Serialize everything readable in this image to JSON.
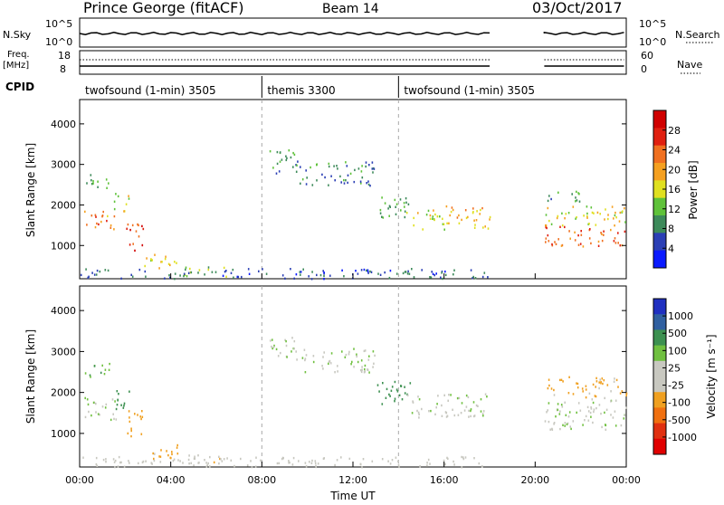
{
  "header": {
    "site": "Prince George (fitACF)",
    "beam": "Beam 14",
    "date": "03/Oct/2017"
  },
  "left_labels": {
    "nsky": "N.Sky",
    "freq": "Freq.",
    "freq_unit": "[MHz]",
    "cpid": "CPID"
  },
  "right_labels": {
    "nsearch": "N.Search",
    "nave": "Nave"
  },
  "noise_axis": {
    "top": "10^5",
    "bottom": "10^0"
  },
  "freq_axis": {
    "top": "18",
    "bottom": "8"
  },
  "nave_axis": {
    "top": "60",
    "bottom": "0"
  },
  "cpid_segments": [
    {
      "label": "twofsound (1-min) 3505",
      "start_h": 0,
      "end_h": 8
    },
    {
      "label": "themis 3300",
      "start_h": 8,
      "end_h": 14
    },
    {
      "label": "twofsound (1-min) 3505",
      "start_h": 14,
      "end_h": 24
    }
  ],
  "time_axis": {
    "label": "Time UT",
    "ticks": [
      "00:00",
      "04:00",
      "08:00",
      "12:00",
      "16:00",
      "20:00",
      "00:00"
    ]
  },
  "range_axis": {
    "label": "Slant Range [km]",
    "ticks": [
      "1000",
      "2000",
      "3000",
      "4000"
    ]
  },
  "power_colorbar": {
    "label": "Power [dB]",
    "ticks": [
      "4",
      "8",
      "12",
      "16",
      "20",
      "24",
      "28"
    ],
    "colors": [
      "#0a1aff",
      "#2b3fb5",
      "#3d8a5a",
      "#5fc23a",
      "#e0e020",
      "#f5a020",
      "#f07020",
      "#e02010",
      "#d00000"
    ]
  },
  "velocity_colorbar": {
    "label": "Velocity [m s⁻¹]",
    "ticks": [
      "1000",
      "500",
      "100",
      "25",
      "-25",
      "-100",
      "-500",
      "-1000"
    ],
    "colors": [
      "#2030c0",
      "#3060a0",
      "#3c9050",
      "#70c040",
      "#c8c8c0",
      "#c8c8c0",
      "#f0a020",
      "#f07010",
      "#e03010",
      "#e00000"
    ]
  },
  "chart_data": {
    "type": "heatmap",
    "title": "Prince George (fitACF)",
    "xlabel": "Time UT",
    "ylabel": "Slant Range [km]",
    "xlim_hours": [
      0,
      24
    ],
    "ylim_km": [
      180,
      4600
    ],
    "data_gap_hours": [
      18,
      20.4
    ],
    "panels": [
      {
        "name": "power",
        "colorbar": "Power [dB]",
        "crange": [
          0,
          30
        ],
        "blobs": [
          {
            "t0": 0.2,
            "t1": 1.6,
            "r0": 1400,
            "r1": 1900,
            "value": 20
          },
          {
            "t0": 0.2,
            "t1": 1.3,
            "r0": 2400,
            "r1": 2800,
            "value": 10
          },
          {
            "t0": 1.5,
            "t1": 2.2,
            "r0": 1800,
            "r1": 2300,
            "value": 14
          },
          {
            "t0": 2.0,
            "t1": 2.8,
            "r0": 900,
            "r1": 1600,
            "value": 24
          },
          {
            "t0": 2.8,
            "t1": 4.3,
            "r0": 400,
            "r1": 800,
            "value": 16
          },
          {
            "t0": 4.3,
            "t1": 6.5,
            "r0": 250,
            "r1": 500,
            "value": 12
          },
          {
            "t0": 8.2,
            "t1": 9.5,
            "r0": 2800,
            "r1": 3400,
            "value": 8
          },
          {
            "t0": 9.5,
            "t1": 13.0,
            "r0": 2500,
            "r1": 3100,
            "value": 8
          },
          {
            "t0": 13.0,
            "t1": 14.5,
            "r0": 1700,
            "r1": 2300,
            "value": 10
          },
          {
            "t0": 14.3,
            "t1": 16.0,
            "r0": 1400,
            "r1": 1900,
            "value": 14
          },
          {
            "t0": 16.0,
            "t1": 18.0,
            "r0": 1400,
            "r1": 2000,
            "value": 18
          },
          {
            "t0": 20.4,
            "t1": 24.0,
            "r0": 1000,
            "r1": 1500,
            "value": 22
          },
          {
            "t0": 20.4,
            "t1": 24.0,
            "r0": 1500,
            "r1": 2000,
            "value": 16
          },
          {
            "t0": 20.4,
            "t1": 22.0,
            "r0": 2100,
            "r1": 2400,
            "value": 10
          },
          {
            "t0": 0.0,
            "t1": 18.0,
            "r0": 200,
            "r1": 450,
            "value": 6
          }
        ]
      },
      {
        "name": "velocity",
        "colorbar": "Velocity [m s⁻¹]",
        "crange": [
          -1000,
          1000
        ],
        "blobs": [
          {
            "t0": 0.2,
            "t1": 1.6,
            "r0": 1300,
            "r1": 1900,
            "value": 0
          },
          {
            "t0": 0.2,
            "t1": 1.3,
            "r0": 2400,
            "r1": 2800,
            "value": 100
          },
          {
            "t0": 1.5,
            "t1": 2.2,
            "r0": 1600,
            "r1": 2200,
            "value": 300
          },
          {
            "t0": 2.0,
            "t1": 2.8,
            "r0": 900,
            "r1": 1600,
            "value": -300
          },
          {
            "t0": 2.8,
            "t1": 4.3,
            "r0": 400,
            "r1": 800,
            "value": -150
          },
          {
            "t0": 4.3,
            "t1": 6.5,
            "r0": 250,
            "r1": 500,
            "value": -60
          },
          {
            "t0": 8.2,
            "t1": 9.5,
            "r0": 2800,
            "r1": 3400,
            "value": 0
          },
          {
            "t0": 9.5,
            "t1": 13.0,
            "r0": 2500,
            "r1": 3100,
            "value": 0
          },
          {
            "t0": 13.0,
            "t1": 14.5,
            "r0": 1700,
            "r1": 2300,
            "value": 200
          },
          {
            "t0": 14.3,
            "t1": 18.0,
            "r0": 1400,
            "r1": 2000,
            "value": 0
          },
          {
            "t0": 20.4,
            "t1": 24.0,
            "r0": 1100,
            "r1": 1900,
            "value": 0
          },
          {
            "t0": 20.4,
            "t1": 24.0,
            "r0": 1900,
            "r1": 2400,
            "value": -150
          },
          {
            "t0": 0.0,
            "t1": 18.0,
            "r0": 200,
            "r1": 450,
            "value": -40
          }
        ]
      }
    ]
  }
}
